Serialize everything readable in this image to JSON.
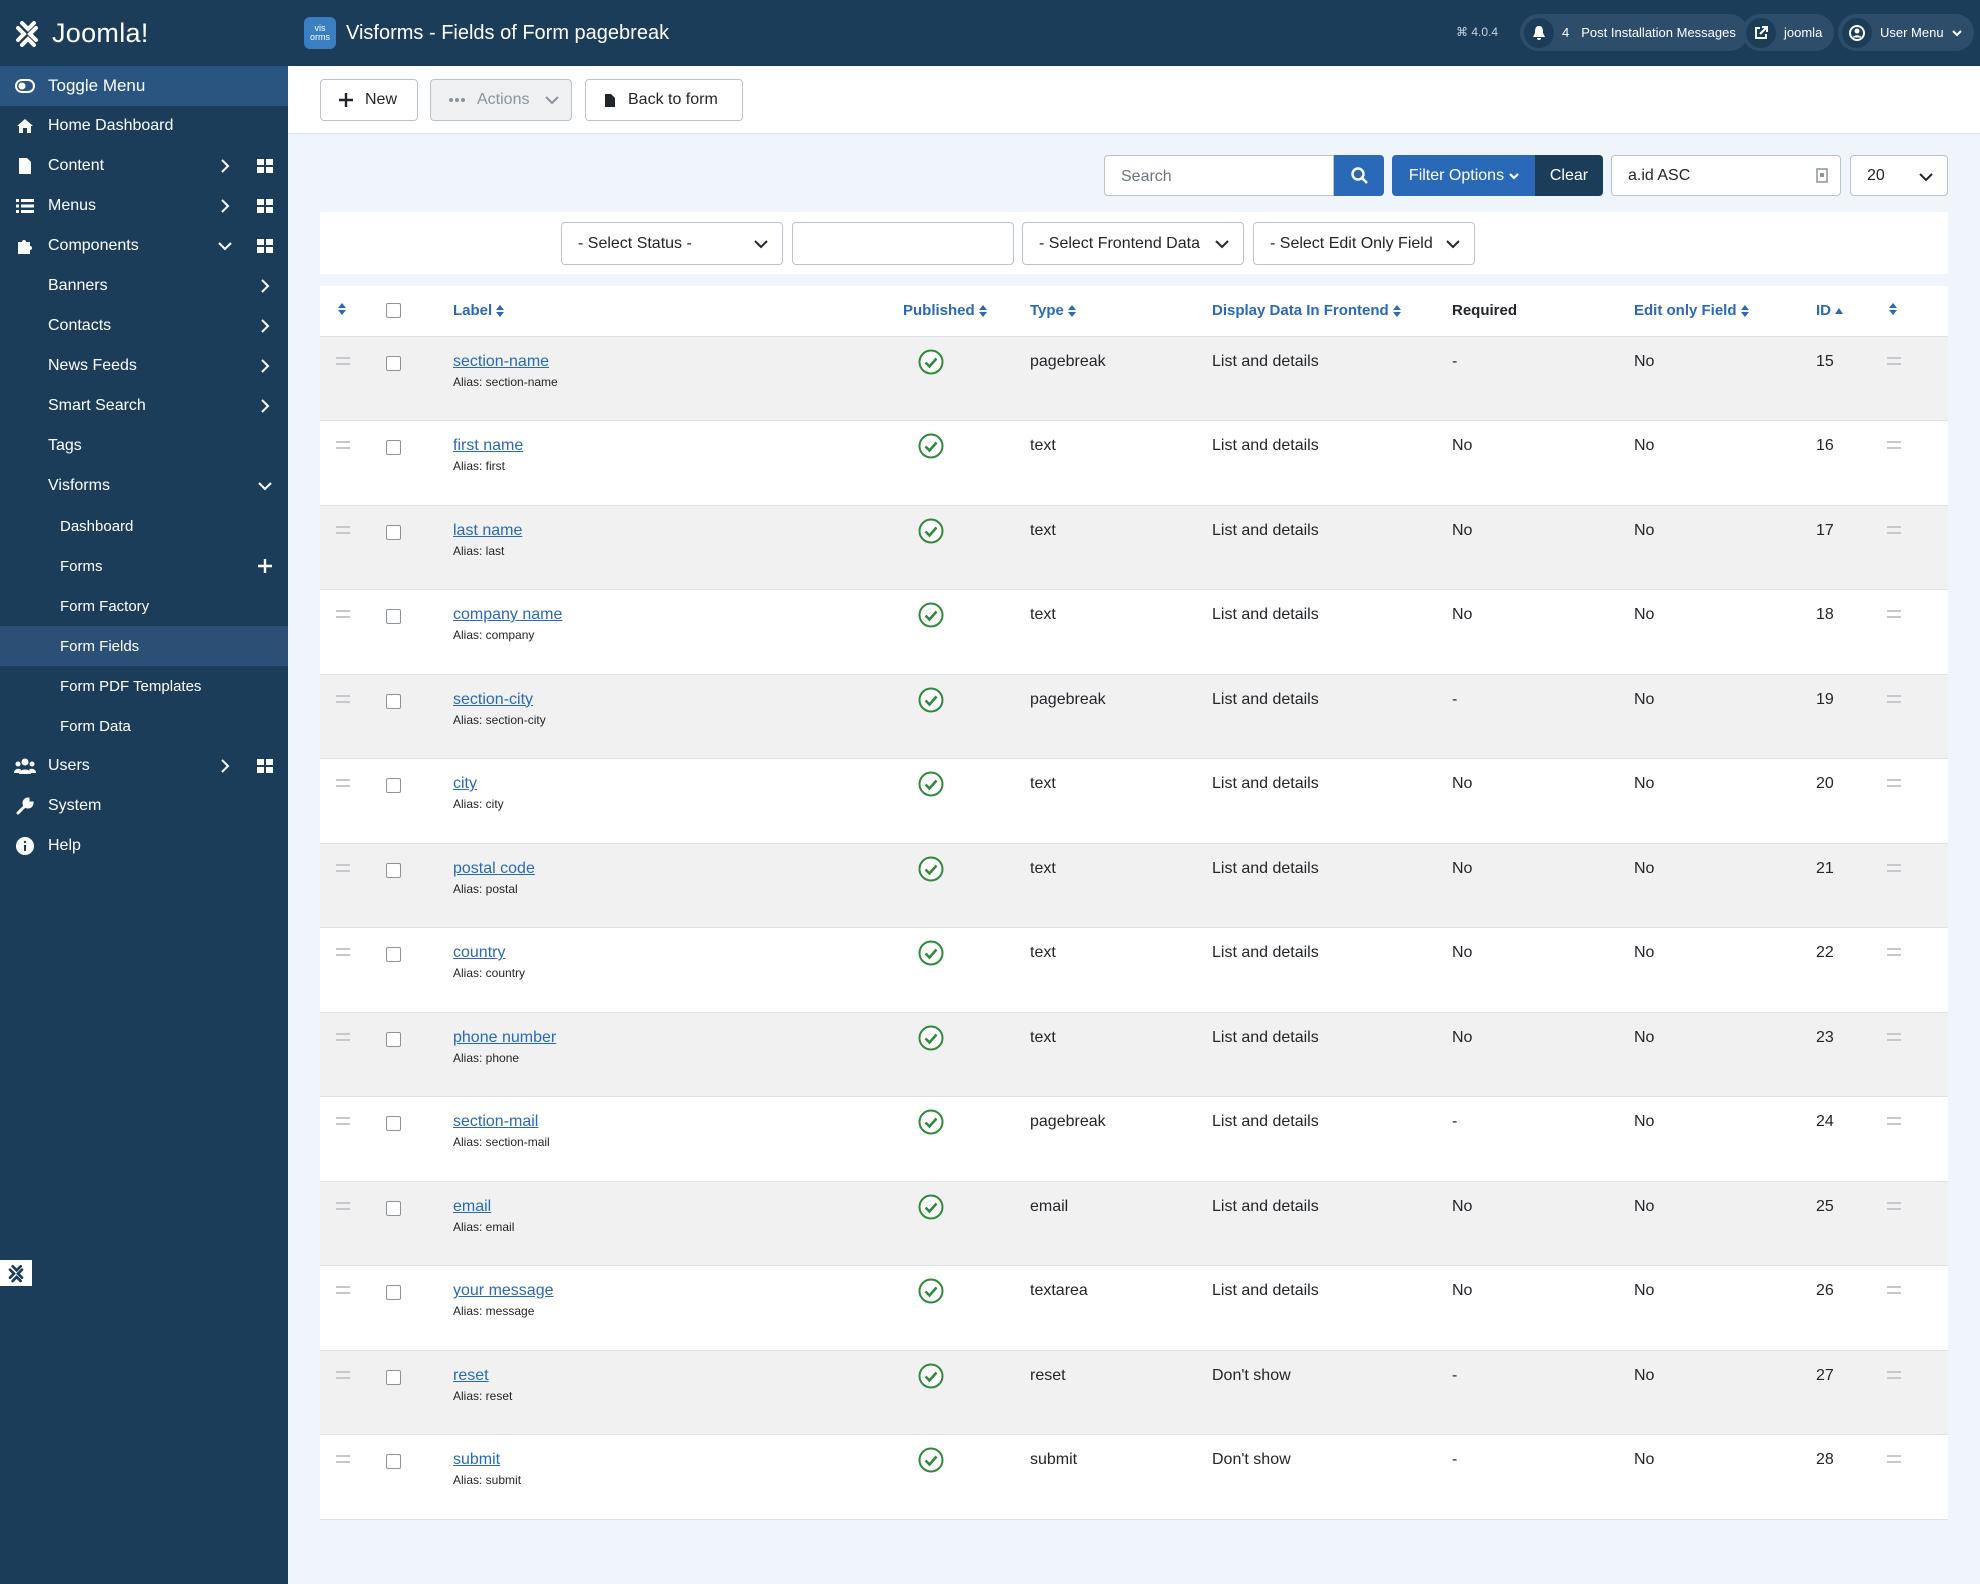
{
  "brand": {
    "name": "Joomla!"
  },
  "header": {
    "app_icon_text": "vis orms",
    "title": "Visforms - Fields of Form pagebreak",
    "version": "4.0.4",
    "notif_count": "4",
    "notif_label": "Post Installation Messages",
    "site_label": "joomla",
    "user_label": "User Menu"
  },
  "sidebar": {
    "toggle": "Toggle Menu",
    "home": "Home Dashboard",
    "content": "Content",
    "menus": "Menus",
    "components": "Components",
    "banners": "Banners",
    "contacts": "Contacts",
    "newsfeeds": "News Feeds",
    "smartsearch": "Smart Search",
    "tags": "Tags",
    "visforms": "Visforms",
    "vf_dashboard": "Dashboard",
    "vf_forms": "Forms",
    "vf_factory": "Form Factory",
    "vf_fields": "Form Fields",
    "vf_pdf": "Form PDF Templates",
    "vf_data": "Form Data",
    "users": "Users",
    "system": "System",
    "help": "Help"
  },
  "toolbar": {
    "new": "New",
    "actions": "Actions",
    "back": "Back to form"
  },
  "search": {
    "placeholder": "Search",
    "filter_options": "Filter Options",
    "clear": "Clear",
    "sort_value": "a.id ASC",
    "limit_value": "20"
  },
  "filters": {
    "status": "- Select Status -",
    "frontend": "- Select Frontend Data",
    "editonly": "- Select Edit Only Field"
  },
  "table": {
    "headers": {
      "label": "Label",
      "published": "Published",
      "type": "Type",
      "display": "Display Data In Frontend",
      "required": "Required",
      "editonly": "Edit only Field",
      "id": "ID"
    },
    "rows": [
      {
        "label": "section-name",
        "alias": "Alias: section-name",
        "type": "pagebreak",
        "display": "List and details",
        "required": "-",
        "editonly": "No",
        "id": "15"
      },
      {
        "label": "first name",
        "alias": "Alias: first",
        "type": "text",
        "display": "List and details",
        "required": "No",
        "editonly": "No",
        "id": "16"
      },
      {
        "label": "last name",
        "alias": "Alias: last",
        "type": "text",
        "display": "List and details",
        "required": "No",
        "editonly": "No",
        "id": "17"
      },
      {
        "label": "company name",
        "alias": "Alias: company",
        "type": "text",
        "display": "List and details",
        "required": "No",
        "editonly": "No",
        "id": "18"
      },
      {
        "label": "section-city",
        "alias": "Alias: section-city",
        "type": "pagebreak",
        "display": "List and details",
        "required": "-",
        "editonly": "No",
        "id": "19"
      },
      {
        "label": "city",
        "alias": "Alias: city",
        "type": "text",
        "display": "List and details",
        "required": "No",
        "editonly": "No",
        "id": "20"
      },
      {
        "label": "postal code",
        "alias": "Alias: postal",
        "type": "text",
        "display": "List and details",
        "required": "No",
        "editonly": "No",
        "id": "21"
      },
      {
        "label": "country",
        "alias": "Alias: country",
        "type": "text",
        "display": "List and details",
        "required": "No",
        "editonly": "No",
        "id": "22"
      },
      {
        "label": "phone number",
        "alias": "Alias: phone",
        "type": "text",
        "display": "List and details",
        "required": "No",
        "editonly": "No",
        "id": "23"
      },
      {
        "label": "section-mail",
        "alias": "Alias: section-mail",
        "type": "pagebreak",
        "display": "List and details",
        "required": "-",
        "editonly": "No",
        "id": "24"
      },
      {
        "label": "email",
        "alias": "Alias: email",
        "type": "email",
        "display": "List and details",
        "required": "No",
        "editonly": "No",
        "id": "25"
      },
      {
        "label": "your message",
        "alias": "Alias: message",
        "type": "textarea",
        "display": "List and details",
        "required": "No",
        "editonly": "No",
        "id": "26"
      },
      {
        "label": "reset",
        "alias": "Alias: reset",
        "type": "reset",
        "display": "Don't show",
        "required": "-",
        "editonly": "No",
        "id": "27"
      },
      {
        "label": "submit",
        "alias": "Alias: submit",
        "type": "submit",
        "display": "Don't show",
        "required": "-",
        "editonly": "No",
        "id": "28"
      }
    ]
  },
  "colors": {
    "sidebar": "#1c3d5a",
    "accent": "#2a69b8",
    "published": "#2f8a3b"
  }
}
